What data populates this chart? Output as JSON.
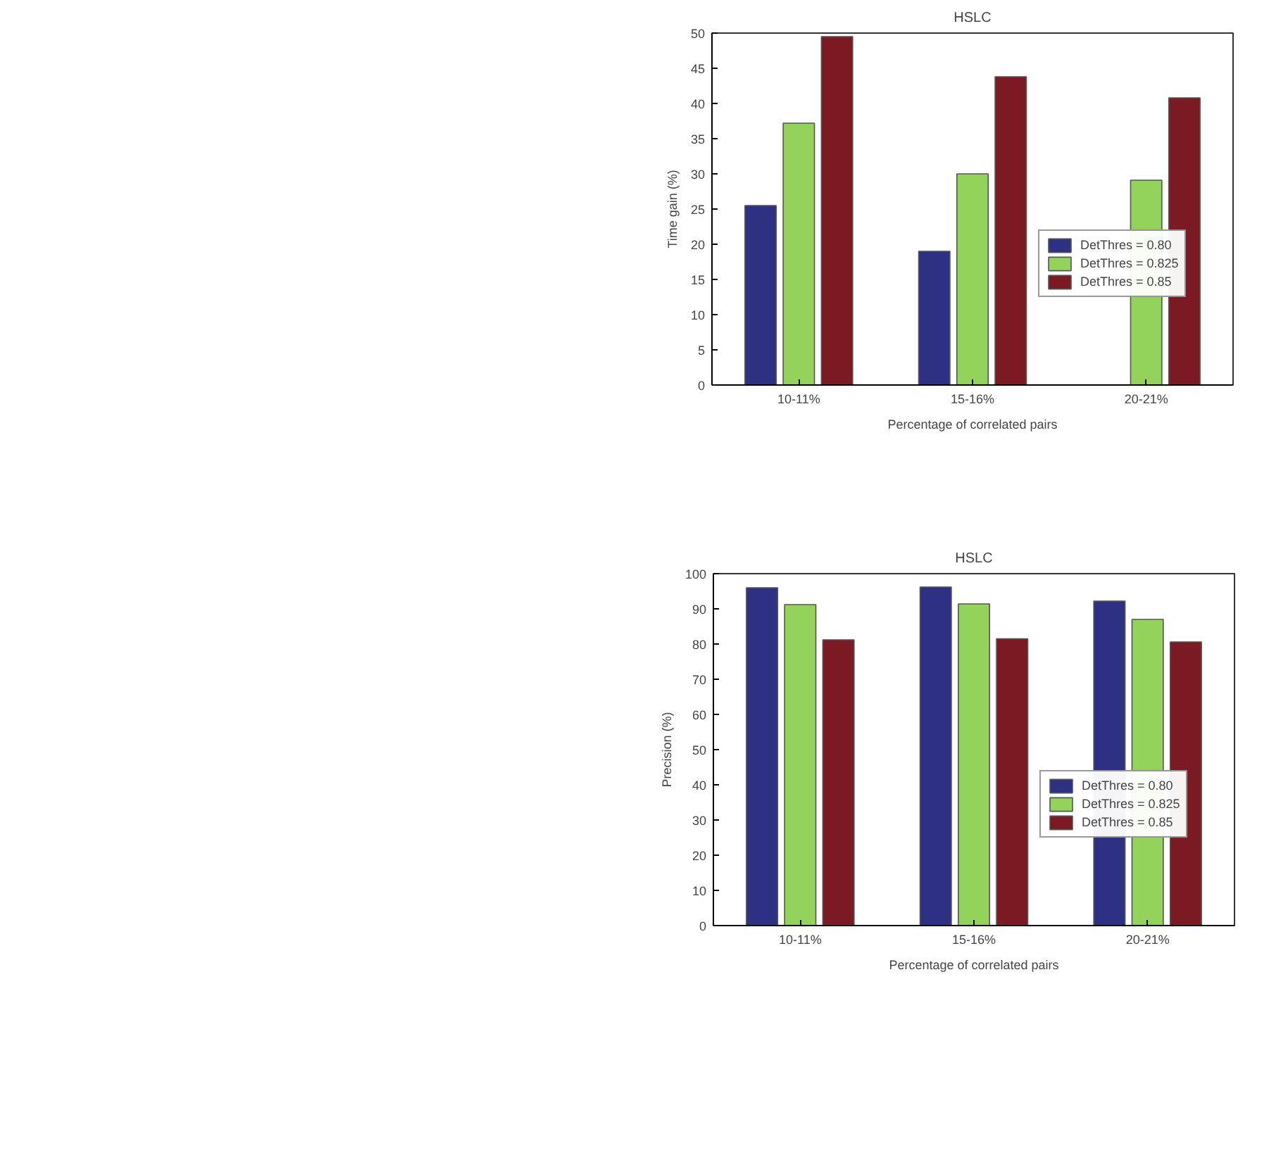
{
  "chart_data": [
    {
      "type": "bar",
      "title": "HSLC",
      "xlabel": "Percentage of correlated pairs",
      "ylabel": "Time gain (%)",
      "categories": [
        "10-11%",
        "15-16%",
        "20-21%"
      ],
      "series": [
        {
          "name": "DetThres = 0.80",
          "color": "#2e3083",
          "values": [
            25.5,
            19.0,
            null
          ]
        },
        {
          "name": "DetThres = 0.825",
          "color": "#93d35a",
          "values": [
            37.2,
            30.0,
            29.1
          ]
        },
        {
          "name": "DetThres = 0.85",
          "color": "#7b1a22",
          "values": [
            49.5,
            43.8,
            40.8
          ]
        }
      ],
      "ylim": [
        0,
        50
      ],
      "yticks": [
        0,
        5,
        10,
        15,
        20,
        25,
        30,
        35,
        40,
        45,
        50
      ],
      "legend": "right",
      "grid": false
    },
    {
      "type": "bar",
      "title": "HSLC",
      "xlabel": "Percentage of correlated pairs",
      "ylabel": "Precision (%)",
      "categories": [
        "10-11%",
        "15-16%",
        "20-21%"
      ],
      "series": [
        {
          "name": "DetThres = 0.80",
          "color": "#2e3083",
          "values": [
            96.0,
            96.2,
            92.2
          ]
        },
        {
          "name": "DetThres = 0.825",
          "color": "#93d35a",
          "values": [
            91.2,
            91.4,
            87.0
          ]
        },
        {
          "name": "DetThres = 0.85",
          "color": "#7b1a22",
          "values": [
            81.2,
            81.5,
            80.6
          ]
        }
      ],
      "ylim": [
        0,
        100
      ],
      "yticks": [
        0,
        10,
        20,
        30,
        40,
        50,
        60,
        70,
        80,
        90,
        100
      ],
      "legend": "right",
      "grid": false
    }
  ]
}
